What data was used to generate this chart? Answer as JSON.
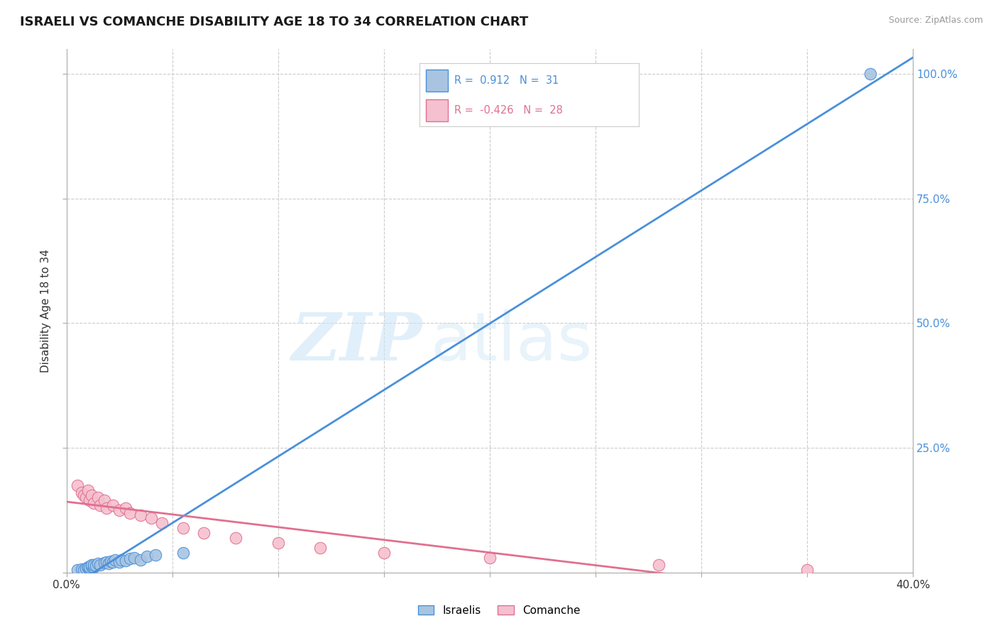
{
  "title": "ISRAELI VS COMANCHE DISABILITY AGE 18 TO 34 CORRELATION CHART",
  "source": "Source: ZipAtlas.com",
  "ylabel": "Disability Age 18 to 34",
  "xlim": [
    0.0,
    0.4
  ],
  "ylim": [
    0.0,
    1.05
  ],
  "xticks": [
    0.0,
    0.05,
    0.1,
    0.15,
    0.2,
    0.25,
    0.3,
    0.35,
    0.4
  ],
  "xtick_labels_show": [
    "0.0%",
    "",
    "",
    "",
    "",
    "",
    "",
    "",
    "40.0%"
  ],
  "yticks_right": [
    0.0,
    0.25,
    0.5,
    0.75,
    1.0
  ],
  "ytick_labels_right": [
    "",
    "25.0%",
    "50.0%",
    "75.0%",
    "100.0%"
  ],
  "israeli_R": "0.912",
  "israeli_N": "31",
  "comanche_R": "-0.426",
  "comanche_N": "28",
  "israeli_color": "#a8c4e0",
  "israeli_line_color": "#4a90d9",
  "comanche_color": "#f5c0cf",
  "comanche_line_color": "#e07090",
  "watermark_zip": "ZIP",
  "watermark_atlas": "atlas",
  "background_color": "#ffffff",
  "grid_color": "#cccccc",
  "israeli_x": [
    0.005,
    0.007,
    0.008,
    0.009,
    0.01,
    0.01,
    0.011,
    0.011,
    0.012,
    0.012,
    0.013,
    0.013,
    0.014,
    0.015,
    0.016,
    0.018,
    0.019,
    0.02,
    0.021,
    0.022,
    0.023,
    0.025,
    0.026,
    0.028,
    0.03,
    0.032,
    0.035,
    0.038,
    0.042,
    0.055,
    0.38
  ],
  "israeli_y": [
    0.005,
    0.007,
    0.006,
    0.008,
    0.01,
    0.012,
    0.009,
    0.011,
    0.013,
    0.015,
    0.012,
    0.016,
    0.014,
    0.018,
    0.016,
    0.02,
    0.022,
    0.019,
    0.023,
    0.021,
    0.025,
    0.022,
    0.026,
    0.024,
    0.028,
    0.03,
    0.026,
    0.032,
    0.035,
    0.04,
    1.0
  ],
  "comanche_x": [
    0.005,
    0.007,
    0.008,
    0.009,
    0.01,
    0.011,
    0.012,
    0.013,
    0.015,
    0.016,
    0.018,
    0.019,
    0.022,
    0.025,
    0.028,
    0.03,
    0.035,
    0.04,
    0.045,
    0.055,
    0.065,
    0.08,
    0.1,
    0.12,
    0.15,
    0.2,
    0.28,
    0.35
  ],
  "comanche_y": [
    0.175,
    0.16,
    0.155,
    0.15,
    0.165,
    0.145,
    0.155,
    0.14,
    0.15,
    0.135,
    0.145,
    0.13,
    0.135,
    0.125,
    0.13,
    0.12,
    0.115,
    0.11,
    0.1,
    0.09,
    0.08,
    0.07,
    0.06,
    0.05,
    0.04,
    0.03,
    0.015,
    0.005
  ]
}
